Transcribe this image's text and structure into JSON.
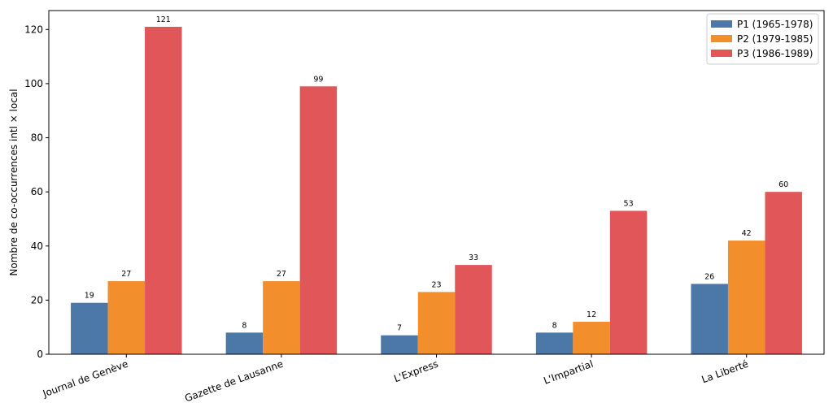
{
  "chart_data": {
    "type": "bar",
    "title": "",
    "xlabel": "",
    "ylabel": "Nombre de co-occurrences intl × local",
    "ylim": [
      0,
      127
    ],
    "yticks": [
      0,
      20,
      40,
      60,
      80,
      100,
      120
    ],
    "grid": false,
    "legend_position": "top-right",
    "categories": [
      "Journal de Genève",
      "Gazette de Lausanne",
      "L'Express",
      "L'Impartial",
      "La Liberté"
    ],
    "series": [
      {
        "name": "P1 (1965-1978)",
        "color": "#4c78a8",
        "values": [
          19,
          8,
          7,
          8,
          26
        ]
      },
      {
        "name": "P2 (1979-1985)",
        "color": "#f28e2b",
        "values": [
          27,
          27,
          23,
          12,
          42
        ]
      },
      {
        "name": "P3 (1986-1989)",
        "color": "#e15759",
        "values": [
          121,
          99,
          33,
          53,
          60
        ]
      }
    ]
  }
}
